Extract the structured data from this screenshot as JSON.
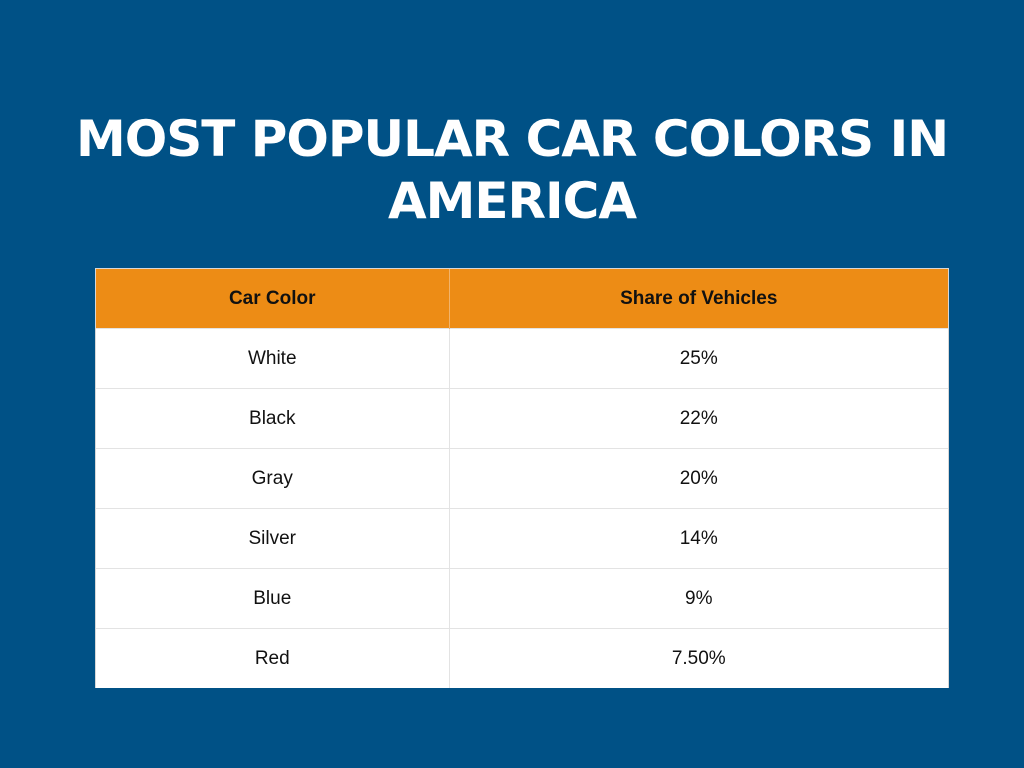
{
  "page": {
    "title": "MOST POPULAR CAR COLORS IN AMERICA",
    "colors": {
      "background": "#005186",
      "header": "#ED8C15",
      "table_bg": "#FFFFFF"
    }
  },
  "chart_data": {
    "type": "table",
    "title": "MOST POPULAR CAR COLORS IN AMERICA",
    "columns": [
      "Car Color",
      "Share of Vehicles"
    ],
    "rows": [
      [
        "White",
        "25%"
      ],
      [
        "Black",
        "22%"
      ],
      [
        "Gray",
        "20%"
      ],
      [
        "Silver",
        "14%"
      ],
      [
        "Blue",
        "9%"
      ],
      [
        "Red",
        "7.50%"
      ]
    ]
  }
}
